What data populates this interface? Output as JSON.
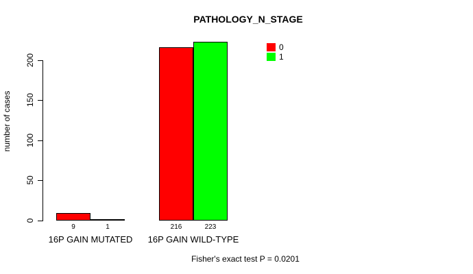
{
  "chart_data": {
    "type": "bar",
    "title": "PATHOLOGY_N_STAGE",
    "ylabel": "number of cases",
    "xlabel": "",
    "ylim": [
      0,
      200
    ],
    "yticks": [
      0,
      50,
      100,
      150,
      200
    ],
    "categories": [
      "16P GAIN MUTATED",
      "16P GAIN WILD-TYPE"
    ],
    "series": [
      {
        "name": "0",
        "color": "#ff0000",
        "values": [
          9,
          216
        ]
      },
      {
        "name": "1",
        "color": "#00ff00",
        "values": [
          1,
          223
        ]
      }
    ],
    "legend_position": "top-right",
    "grid": false,
    "annotation": "Fisher's exact test P = 0.0201"
  },
  "colors": {
    "background": "#ffffff",
    "axis": "#000000",
    "text": "#000000",
    "bar_border": "#000000",
    "series_0": "#ff0000",
    "series_1": "#00ff00"
  }
}
